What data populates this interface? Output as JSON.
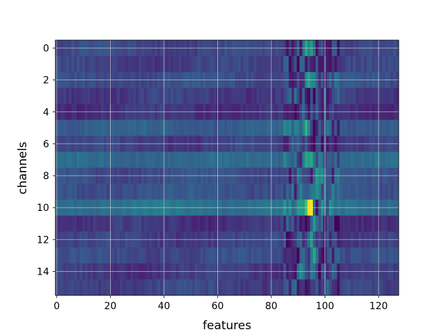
{
  "chart_data": {
    "type": "heatmap",
    "title": "",
    "xlabel": "features",
    "ylabel": "channels",
    "rows": 16,
    "cols": 128,
    "xlim": [
      -0.5,
      127.5
    ],
    "ylim": [
      15.5,
      -0.5
    ],
    "x_ticks": [
      0,
      20,
      40,
      60,
      80,
      100,
      120
    ],
    "y_ticks": [
      0,
      2,
      4,
      6,
      8,
      10,
      12,
      14
    ],
    "grid": true,
    "colormap": "viridis",
    "value_range": [
      0,
      1
    ],
    "row_baseline": [
      0.22,
      0.2,
      0.24,
      0.19,
      0.17,
      0.3,
      0.2,
      0.34,
      0.24,
      0.26,
      0.38,
      0.17,
      0.2,
      0.23,
      0.18,
      0.21
    ],
    "active_band_features": [
      85,
      105
    ],
    "hotspots": [
      {
        "channel": 0,
        "feature": 93,
        "value": 0.6
      },
      {
        "channel": 0,
        "feature": 95,
        "value": 0.55
      },
      {
        "channel": 2,
        "feature": 94,
        "value": 0.6
      },
      {
        "channel": 2,
        "feature": 96,
        "value": 0.45
      },
      {
        "channel": 5,
        "feature": 89,
        "value": 0.45
      },
      {
        "channel": 5,
        "feature": 93,
        "value": 0.65
      },
      {
        "channel": 5,
        "feature": 96,
        "value": 0.02
      },
      {
        "channel": 7,
        "feature": 93,
        "value": 0.6
      },
      {
        "channel": 7,
        "feature": 95,
        "value": 0.6
      },
      {
        "channel": 8,
        "feature": 97,
        "value": 0.55
      },
      {
        "channel": 8,
        "feature": 99,
        "value": 0.5
      },
      {
        "channel": 9,
        "feature": 91,
        "value": 0.45
      },
      {
        "channel": 9,
        "feature": 97,
        "value": 0.5
      },
      {
        "channel": 10,
        "feature": 91,
        "value": 0.55
      },
      {
        "channel": 10,
        "feature": 94,
        "value": 0.95
      },
      {
        "channel": 10,
        "feature": 95,
        "value": 1.0
      },
      {
        "channel": 10,
        "feature": 97,
        "value": 0.05
      },
      {
        "channel": 11,
        "feature": 93,
        "value": 0.02
      },
      {
        "channel": 11,
        "feature": 96,
        "value": 0.55
      },
      {
        "channel": 12,
        "feature": 95,
        "value": 0.55
      },
      {
        "channel": 13,
        "feature": 96,
        "value": 0.6
      },
      {
        "channel": 14,
        "feature": 91,
        "value": 0.5
      },
      {
        "channel": 14,
        "feature": 95,
        "value": 0.4
      },
      {
        "channel": 15,
        "feature": 93,
        "value": 0.05
      }
    ]
  }
}
